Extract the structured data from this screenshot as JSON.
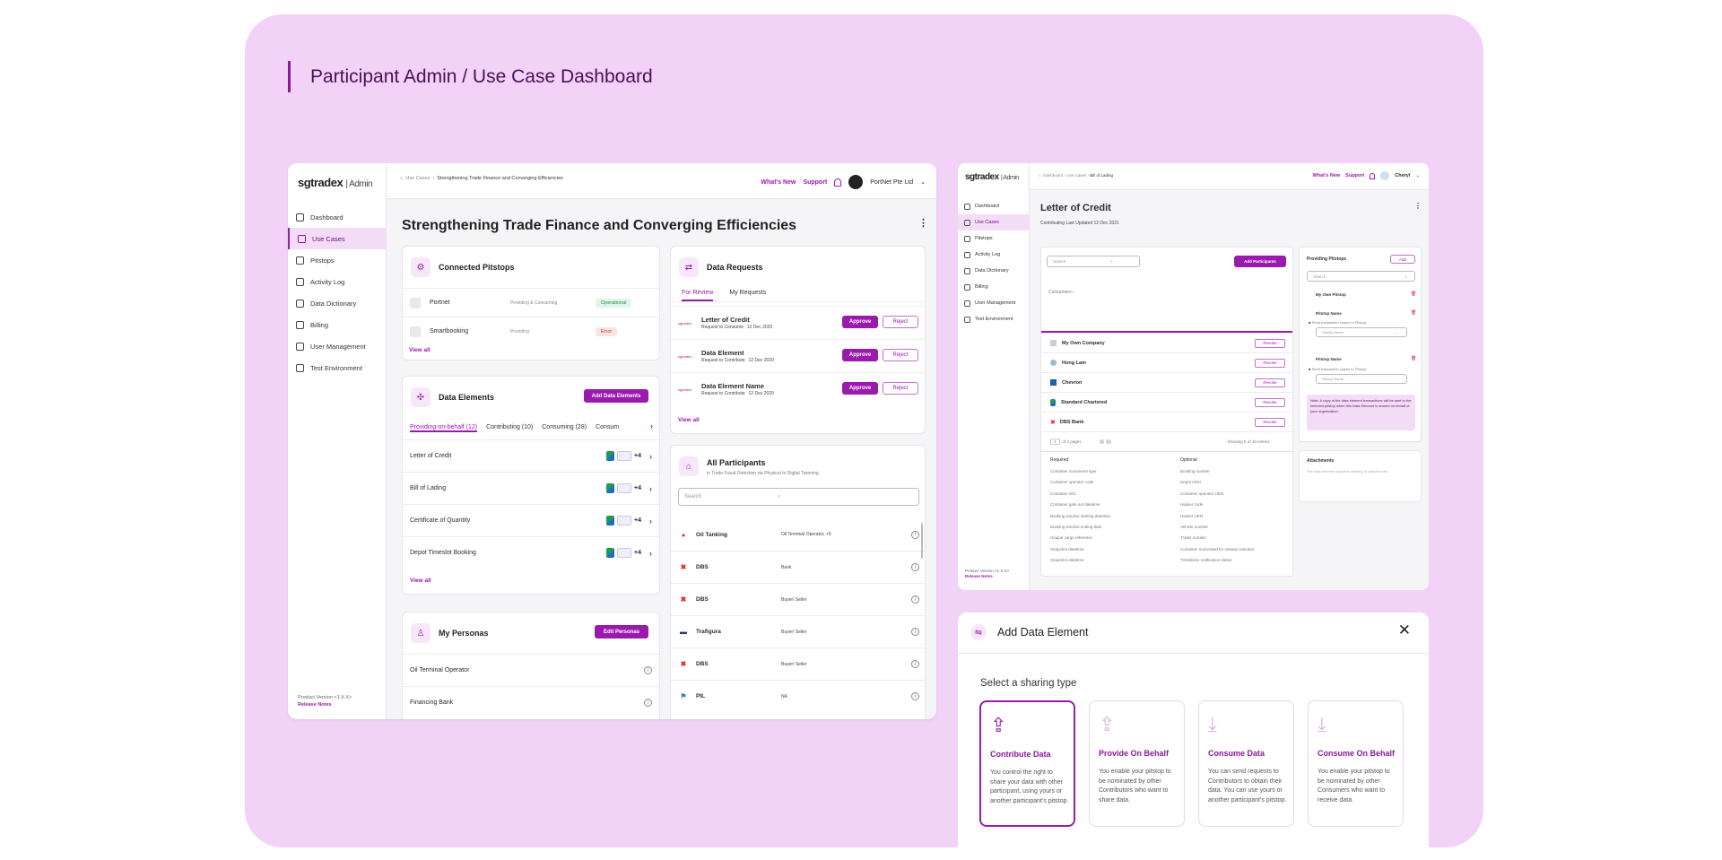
{
  "page_title": "Participant Admin / Use Case Dashboard",
  "colors": {
    "accent": "#9b1aae",
    "background": "#f3d2f7"
  },
  "main": {
    "logo": "sgtradex",
    "logo_suffix": "Admin",
    "sidebar": [
      {
        "label": "Dashboard",
        "icon": "grid-icon"
      },
      {
        "label": "Use Cases",
        "icon": "book-icon",
        "active": true
      },
      {
        "label": "Pitstops",
        "icon": "pitstop-icon"
      },
      {
        "label": "Activity Log",
        "icon": "log-icon"
      },
      {
        "label": "Data Dictionary",
        "icon": "dictionary-icon"
      },
      {
        "label": "Billing",
        "icon": "billing-icon"
      },
      {
        "label": "User Management",
        "icon": "users-icon"
      },
      {
        "label": "Test Environment",
        "icon": "test-icon"
      }
    ],
    "product_version": "Product Version <1.X.X>",
    "release_notes": "Release Notes",
    "breadcrumb": {
      "first": "Use Cases",
      "current": "Strengthening Trade Finance and Converging Efficiencies"
    },
    "whats_new": "What's New",
    "support": "Support",
    "user": "PortNet Pte Ltd",
    "heading": "Strengthening Trade Finance and Converging Efficiencies",
    "connected_pitstops": {
      "title": "Connected Pitstops",
      "rows": [
        {
          "name": "Portnet",
          "role": "Providing & Consuming",
          "status": "Operational"
        },
        {
          "name": "Smartbooking",
          "role": "Providing",
          "status": "Error"
        }
      ],
      "view_all": "View all"
    },
    "data_elements": {
      "title": "Data Elements",
      "add_label": "Add Data Elements",
      "tabs": [
        "Providing-on-behalf (12)",
        "Contributing (10)",
        "Consuming  (28)",
        "Consum"
      ],
      "rows": [
        {
          "name": "Letter of Credit",
          "count": "+4"
        },
        {
          "name": "Bill of Lading",
          "count": "+4"
        },
        {
          "name": "Certificate of Quantity",
          "count": "+4"
        },
        {
          "name": "Depot Timeslot Booking",
          "count": "+4"
        }
      ],
      "view_all": "View all"
    },
    "personas": {
      "title": "My Personas",
      "edit_label": "Edit Personas",
      "rows": [
        "Oil Terminal Operator",
        "Financing Bank"
      ]
    },
    "data_requests": {
      "title": "Data Requests",
      "tabs": [
        "For Review",
        "My Requests"
      ],
      "rows": [
        {
          "name": "Letter of Credit",
          "action": "Request to Consume",
          "date": "12 Dec 2020"
        },
        {
          "name": "Data Element",
          "action": "Request to Contribute",
          "date": "12 Dec 2020"
        },
        {
          "name": "Data Element Name",
          "action": "Request to Contribute",
          "date": "12 Dec 2020"
        }
      ],
      "approve": "Approve",
      "reject": "Reject",
      "view_all": "View all"
    },
    "participants": {
      "title": "All Participants",
      "subtitle": "in Trade Fraud Detection via Physical to Digital Twinning",
      "search_placeholder": "Search",
      "rows": [
        {
          "name": "Oil Tanking",
          "role": "Oil Terminal Operator, +5"
        },
        {
          "name": "DBS",
          "role": "Bank"
        },
        {
          "name": "DBS",
          "role": "Buyer/ Seller"
        },
        {
          "name": "Trafigura",
          "role": "Buyer/ Seller"
        },
        {
          "name": "DBS",
          "role": "Buyer/ Seller"
        },
        {
          "name": "PIL",
          "role": "NA"
        }
      ]
    }
  },
  "detail": {
    "logo": "sgtradex",
    "logo_suffix": "Admin",
    "sidebar": [
      "Dashboard",
      "Use Cases",
      "Pitstops",
      "Activity Log",
      "Data Dictionary",
      "Billing",
      "User Management",
      "Test Environment"
    ],
    "breadcrumb": [
      "Dashboard",
      "Use Cases",
      "Bill of Lading"
    ],
    "whats_new": "What's New",
    "support": "Support",
    "user": "Cheryl",
    "title": "Letter of Credit",
    "meta": "Contributing    Last Updated 12 Dec 2021",
    "search_placeholder": "Search",
    "add_participants": "Add Participants",
    "consumers": "Consumers",
    "participants": [
      "My Own Company",
      "Hong Lam",
      "Chevron",
      "Standard Chartered",
      "DBS Bank"
    ],
    "revoke": "Revoke",
    "pager": "of 2 pages",
    "showing": "Showing 5 of 10 entries",
    "required_label": "Required",
    "optional_label": "Optional",
    "required": [
      "Container movement type",
      "Container operator code",
      "Container ISO",
      "Container gate out datetime",
      "Booking window starting datetime",
      "Booking window ending date",
      "Unique cargo reference",
      "Snapshot datetime",
      "Snapshot datetime"
    ],
    "optional": [
      "Booking number",
      "Depot UEN",
      "Container operator UEN",
      "Haulier code",
      "Haulier UEN",
      "Vehicle number",
      "Trailer number",
      "Container nominated for release indicator",
      "Timeliness notification status"
    ],
    "providing_pitstops": "Providing Pitstops",
    "add": "Add",
    "pitstops": [
      "My Own Pitstop",
      "Pitstop Name",
      "Pitstop Name"
    ],
    "send_copies": "Send transaction copies to Pitstop",
    "pitstop_select": "Pitstop Name",
    "note": "Note: A copy of the data element transactions will be sent to the selected pitstop when this Data Element is shared on behalf of your organization.",
    "attachments": "Attachments",
    "attachments_desc": "The data element supports sending of attachments.",
    "product_version": "Product Version <1.X.X>",
    "release_notes": "Release Notes"
  },
  "modal": {
    "title": "Add Data Element",
    "subtitle": "Select a sharing type",
    "options": [
      {
        "title": "Contribute Data",
        "desc": "You control the right to share your data with other participant, using yours or another participant's pitstop."
      },
      {
        "title": "Provide On Behalf",
        "desc": "You enable your pitstop to be nominated by other Contributors who want to share data."
      },
      {
        "title": "Consume Data",
        "desc": "You can send requests to Contributors to obtain their data. You can use yours or another participant's pitstop."
      },
      {
        "title": "Consume On Behalf",
        "desc": "You enable your pitstop to be nominated by other Consumers who want to receive data."
      }
    ]
  }
}
